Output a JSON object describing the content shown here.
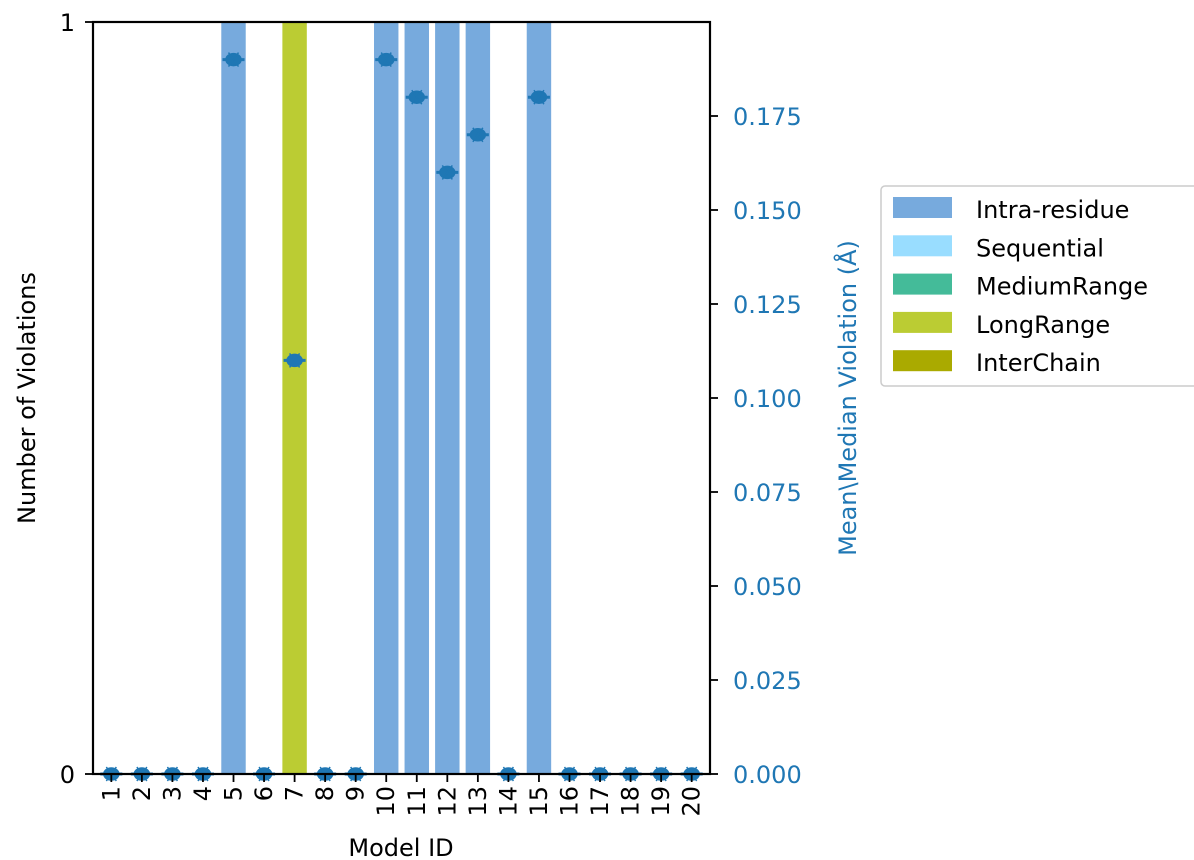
{
  "chart_data": {
    "type": "bar",
    "title": "",
    "xlabel": "Model ID",
    "ylabel": "Number of Violations",
    "y2label": "Mean\\Median Violation (Å)",
    "categories": [
      "1",
      "2",
      "3",
      "4",
      "5",
      "6",
      "7",
      "8",
      "9",
      "10",
      "11",
      "12",
      "13",
      "14",
      "15",
      "16",
      "17",
      "18",
      "19",
      "20"
    ],
    "ylim": [
      0,
      1
    ],
    "yticks": [
      "0",
      "1"
    ],
    "y2lim": [
      0,
      0.2
    ],
    "y2ticks": [
      "0.000",
      "0.025",
      "0.050",
      "0.075",
      "0.100",
      "0.125",
      "0.150",
      "0.175"
    ],
    "series": [
      {
        "name": "Intra-residue",
        "color": "#77aadd",
        "values": [
          0,
          0,
          0,
          0,
          1,
          0,
          0,
          0,
          0,
          1,
          1,
          1,
          1,
          0,
          1,
          0,
          0,
          0,
          0,
          0
        ]
      },
      {
        "name": "Sequential",
        "color": "#99ddff",
        "values": [
          0,
          0,
          0,
          0,
          0,
          0,
          0,
          0,
          0,
          0,
          0,
          0,
          0,
          0,
          0,
          0,
          0,
          0,
          0,
          0
        ]
      },
      {
        "name": "MediumRange",
        "color": "#44bb99",
        "values": [
          0,
          0,
          0,
          0,
          0,
          0,
          0,
          0,
          0,
          0,
          0,
          0,
          0,
          0,
          0,
          0,
          0,
          0,
          0,
          0
        ]
      },
      {
        "name": "LongRange",
        "color": "#bbcc33",
        "values": [
          0,
          0,
          0,
          0,
          0,
          0,
          1,
          0,
          0,
          0,
          0,
          0,
          0,
          0,
          0,
          0,
          0,
          0,
          0,
          0
        ]
      },
      {
        "name": "InterChain",
        "color": "#aaaa00",
        "values": [
          0,
          0,
          0,
          0,
          0,
          0,
          0,
          0,
          0,
          0,
          0,
          0,
          0,
          0,
          0,
          0,
          0,
          0,
          0,
          0
        ]
      }
    ],
    "violation_series": {
      "color": "#1f77b4",
      "values": [
        0,
        0,
        0,
        0,
        0.19,
        0,
        0.11,
        0,
        0,
        0.19,
        0.18,
        0.16,
        0.17,
        0,
        0.18,
        0,
        0,
        0,
        0,
        0
      ]
    },
    "legend_position": "right"
  }
}
